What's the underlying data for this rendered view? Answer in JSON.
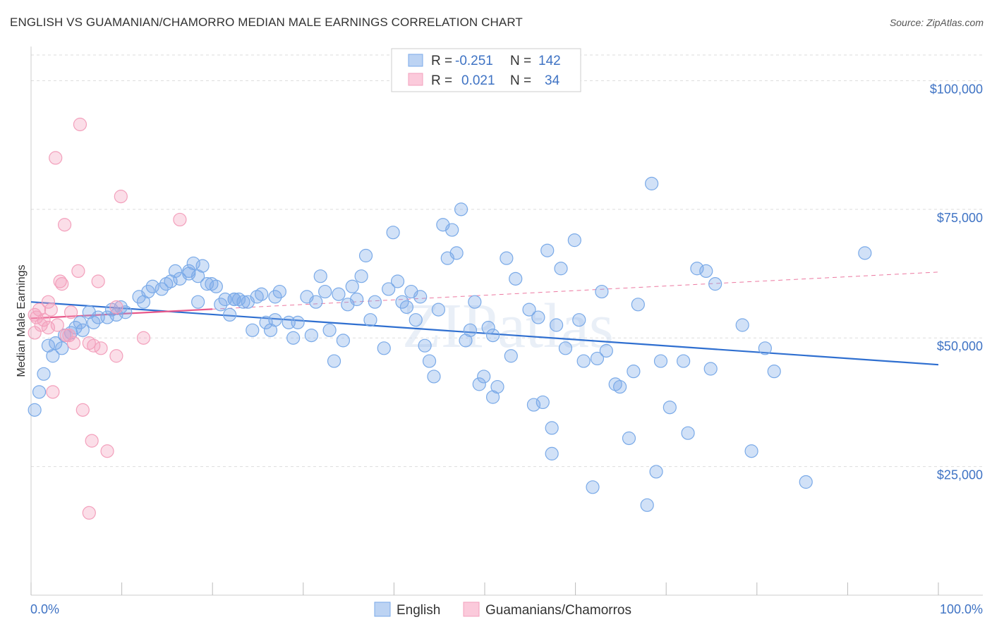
{
  "title": "ENGLISH VS GUAMANIAN/CHAMORRO MEDIAN MALE EARNINGS CORRELATION CHART",
  "source": "Source: ZipAtlas.com",
  "colors": {
    "english": "#7aaae8",
    "english_line": "#2f6fd0",
    "guam": "#f3a0bc",
    "guam_line": "#e8588a",
    "axis_text": "#3f73c4",
    "grid": "#dddddd"
  },
  "legend": {
    "rows": [
      {
        "r_label": "R =",
        "r_value": "-0.251",
        "n_label": "N =",
        "n_value": "142"
      },
      {
        "r_label": "R =",
        "r_value": "0.021",
        "n_label": "N =",
        "n_value": "34"
      }
    ]
  },
  "bottom_legend": [
    "English",
    "Guamanians/Chamorros"
  ],
  "watermark": "ZIPatlas",
  "chart_data": {
    "type": "scatter",
    "ylabel": "Median Male Earnings",
    "xlim": [
      0,
      100
    ],
    "ylim": [
      0,
      105000
    ],
    "x_tick_labels": [
      "0.0%",
      "100.0%"
    ],
    "y_ticks": [
      25000,
      50000,
      75000,
      100000
    ],
    "y_tick_labels": [
      "$25,000",
      "$50,000",
      "$75,000",
      "$100,000"
    ],
    "grid": true,
    "legend_position": "top-center",
    "series": [
      {
        "name": "English",
        "r": -0.251,
        "n": 142,
        "trend": {
          "x": [
            0,
            100
          ],
          "y": [
            57000,
            44800
          ]
        },
        "points": [
          [
            0.4,
            36000
          ],
          [
            0.9,
            39500
          ],
          [
            1.4,
            43000
          ],
          [
            1.9,
            48500
          ],
          [
            2.4,
            46500
          ],
          [
            2.7,
            49000
          ],
          [
            3.4,
            48000
          ],
          [
            3.7,
            50500
          ],
          [
            4.4,
            51000
          ],
          [
            4.9,
            52000
          ],
          [
            5.4,
            53000
          ],
          [
            5.7,
            51500
          ],
          [
            6.4,
            55000
          ],
          [
            6.9,
            53000
          ],
          [
            7.4,
            54000
          ],
          [
            8.4,
            54000
          ],
          [
            8.9,
            55500
          ],
          [
            9.4,
            54500
          ],
          [
            10.4,
            55000
          ],
          [
            11.9,
            58000
          ],
          [
            12.4,
            57000
          ],
          [
            12.9,
            59000
          ],
          [
            13.4,
            60000
          ],
          [
            14.4,
            59500
          ],
          [
            14.9,
            60500
          ],
          [
            15.4,
            61000
          ],
          [
            15.9,
            63000
          ],
          [
            16.4,
            61500
          ],
          [
            17.4,
            63000
          ],
          [
            17.9,
            64500
          ],
          [
            18.4,
            62000
          ],
          [
            18.9,
            64000
          ],
          [
            18.4,
            57000
          ],
          [
            19.4,
            60500
          ],
          [
            19.9,
            60500
          ],
          [
            20.4,
            60000
          ],
          [
            20.9,
            56500
          ],
          [
            21.4,
            57500
          ],
          [
            21.9,
            54500
          ],
          [
            22.4,
            57500
          ],
          [
            22.9,
            57500
          ],
          [
            23.4,
            57000
          ],
          [
            23.9,
            57000
          ],
          [
            24.4,
            51500
          ],
          [
            24.9,
            58000
          ],
          [
            25.4,
            58500
          ],
          [
            25.9,
            53000
          ],
          [
            26.4,
            51500
          ],
          [
            26.9,
            58000
          ],
          [
            27.4,
            59000
          ],
          [
            28.4,
            53000
          ],
          [
            28.9,
            50000
          ],
          [
            29.4,
            53000
          ],
          [
            30.4,
            58000
          ],
          [
            30.9,
            50500
          ],
          [
            31.4,
            57000
          ],
          [
            31.9,
            62000
          ],
          [
            32.4,
            59000
          ],
          [
            32.9,
            51500
          ],
          [
            33.4,
            45500
          ],
          [
            33.9,
            58500
          ],
          [
            34.4,
            49500
          ],
          [
            34.9,
            56500
          ],
          [
            35.4,
            60000
          ],
          [
            35.9,
            57500
          ],
          [
            36.4,
            62000
          ],
          [
            36.9,
            66000
          ],
          [
            37.4,
            53500
          ],
          [
            37.9,
            57000
          ],
          [
            38.9,
            48000
          ],
          [
            39.4,
            59500
          ],
          [
            39.9,
            70500
          ],
          [
            40.4,
            61000
          ],
          [
            40.9,
            57000
          ],
          [
            41.4,
            56000
          ],
          [
            41.9,
            59000
          ],
          [
            42.4,
            53500
          ],
          [
            42.9,
            58000
          ],
          [
            43.4,
            48500
          ],
          [
            43.9,
            45500
          ],
          [
            44.4,
            42500
          ],
          [
            44.9,
            55500
          ],
          [
            45.4,
            72000
          ],
          [
            45.9,
            65500
          ],
          [
            46.4,
            71000
          ],
          [
            46.9,
            66500
          ],
          [
            47.4,
            75000
          ],
          [
            47.9,
            49500
          ],
          [
            48.4,
            51500
          ],
          [
            48.9,
            57000
          ],
          [
            49.4,
            41000
          ],
          [
            49.9,
            42500
          ],
          [
            50.4,
            52000
          ],
          [
            50.9,
            38500
          ],
          [
            50.9,
            50500
          ],
          [
            51.4,
            40500
          ],
          [
            52.4,
            65500
          ],
          [
            52.9,
            46500
          ],
          [
            53.4,
            61500
          ],
          [
            54.9,
            55500
          ],
          [
            55.4,
            37000
          ],
          [
            55.9,
            54000
          ],
          [
            56.4,
            37500
          ],
          [
            56.9,
            67000
          ],
          [
            57.4,
            27500
          ],
          [
            57.9,
            52500
          ],
          [
            58.4,
            63500
          ],
          [
            58.9,
            48000
          ],
          [
            59.9,
            69000
          ],
          [
            60.4,
            53500
          ],
          [
            60.9,
            45500
          ],
          [
            61.9,
            21000
          ],
          [
            62.4,
            46000
          ],
          [
            62.9,
            59000
          ],
          [
            63.4,
            47500
          ],
          [
            64.4,
            41000
          ],
          [
            64.9,
            40500
          ],
          [
            65.9,
            30500
          ],
          [
            66.4,
            43500
          ],
          [
            66.9,
            56500
          ],
          [
            67.9,
            17500
          ],
          [
            68.4,
            80000
          ],
          [
            68.9,
            24000
          ],
          [
            69.4,
            45500
          ],
          [
            70.4,
            36500
          ],
          [
            71.9,
            45500
          ],
          [
            72.4,
            31500
          ],
          [
            73.4,
            63500
          ],
          [
            74.4,
            63000
          ],
          [
            74.9,
            44000
          ],
          [
            75.4,
            60500
          ],
          [
            78.4,
            52500
          ],
          [
            79.4,
            28000
          ],
          [
            80.9,
            48000
          ],
          [
            81.9,
            43500
          ],
          [
            85.4,
            22000
          ],
          [
            91.9,
            66500
          ],
          [
            57.4,
            32500
          ],
          [
            26.9,
            53500
          ],
          [
            22.4,
            57500
          ],
          [
            9.9,
            56000
          ],
          [
            17.4,
            62500
          ]
        ]
      },
      {
        "name": "Guamanians/Chamorros",
        "r": 0.021,
        "n": 34,
        "trend": {
          "x": [
            0,
            100
          ],
          "y": [
            53800,
            62800
          ]
        },
        "points": [
          [
            0.4,
            51000
          ],
          [
            0.4,
            54500
          ],
          [
            0.6,
            54000
          ],
          [
            0.9,
            55500
          ],
          [
            1.1,
            52500
          ],
          [
            1.4,
            53500
          ],
          [
            1.9,
            57000
          ],
          [
            1.9,
            52000
          ],
          [
            2.2,
            55500
          ],
          [
            2.4,
            39500
          ],
          [
            2.9,
            52500
          ],
          [
            2.7,
            85000
          ],
          [
            3.2,
            61000
          ],
          [
            3.4,
            60500
          ],
          [
            3.7,
            72000
          ],
          [
            3.9,
            50500
          ],
          [
            4.2,
            50500
          ],
          [
            4.4,
            55000
          ],
          [
            4.7,
            49000
          ],
          [
            5.2,
            63000
          ],
          [
            5.7,
            36000
          ],
          [
            5.4,
            91500
          ],
          [
            6.4,
            49000
          ],
          [
            6.7,
            30000
          ],
          [
            6.9,
            48500
          ],
          [
            7.4,
            61000
          ],
          [
            7.7,
            48000
          ],
          [
            8.4,
            28000
          ],
          [
            9.4,
            46500
          ],
          [
            9.4,
            56000
          ],
          [
            9.9,
            77500
          ],
          [
            6.4,
            16000
          ],
          [
            12.4,
            50000
          ],
          [
            16.4,
            73000
          ]
        ]
      }
    ]
  }
}
